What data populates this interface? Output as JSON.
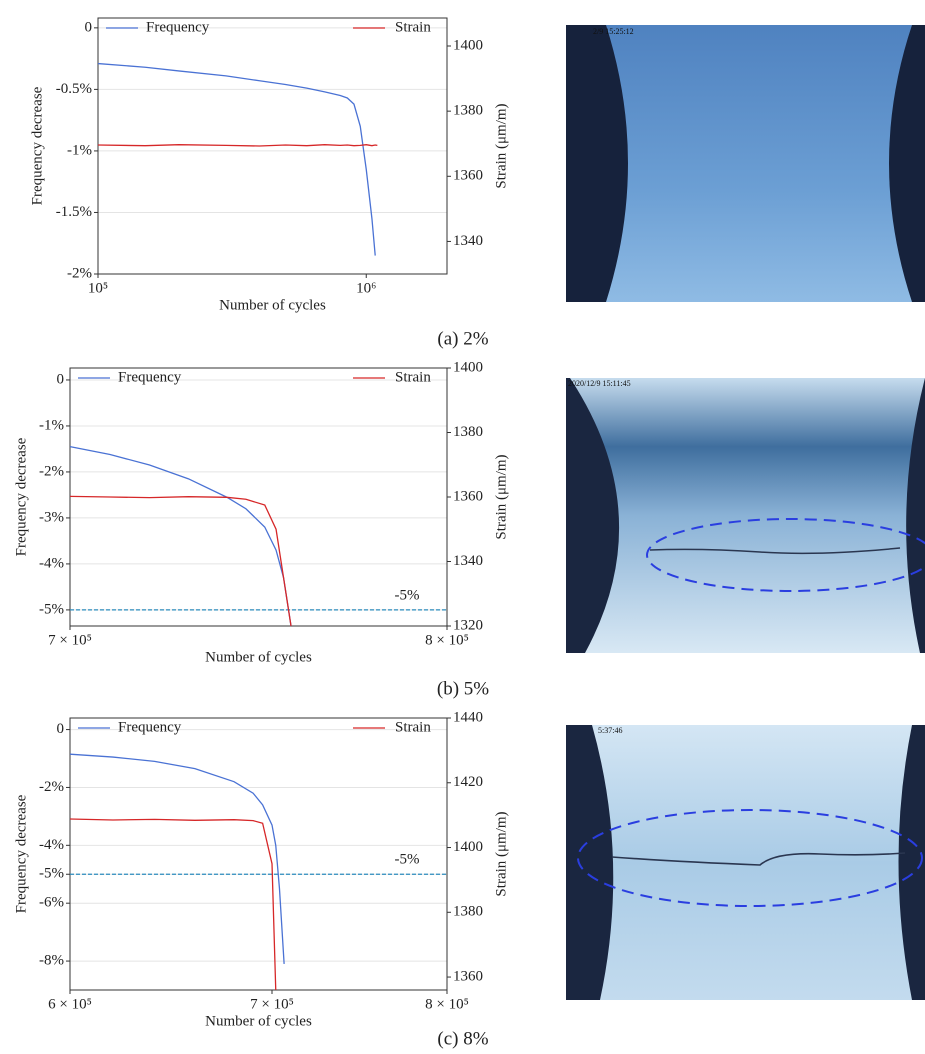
{
  "chart_data": [
    {
      "type": "line",
      "caption": "(a) 2%",
      "photo_timestamp": "2/9 15:25:12",
      "xlabel": "Number of cycles",
      "ylabel": "Frequency decrease",
      "y2label": "Strain (μm/m)",
      "xscale": "log",
      "grid": true,
      "xlim": [
        100000,
        2000000
      ],
      "xticks": [
        {
          "value": 100000,
          "label": "10⁵"
        },
        {
          "value": 1000000,
          "label": "10⁶"
        }
      ],
      "ylim": [
        -2,
        0.08
      ],
      "yticks": [
        0,
        {
          "value": -0.5,
          "label": "-0.5%"
        },
        {
          "value": -1,
          "label": "-1%"
        },
        {
          "value": -1.5,
          "label": "-1.5%"
        },
        {
          "value": -2,
          "label": "-2%"
        }
      ],
      "y2lim": [
        1330,
        1408.6
      ],
      "y2ticks": [
        1340,
        1360,
        1380,
        1400
      ],
      "x": [
        100000,
        150000,
        200000,
        300000,
        400000,
        500000,
        600000,
        700000,
        800000,
        850000,
        900000,
        950000,
        1000000,
        1050000,
        1080000,
        1100000
      ],
      "series": [
        {
          "name": "Frequency",
          "color": "#4a72d4",
          "values": [
            -0.29,
            -0.32,
            -0.35,
            -0.39,
            -0.43,
            -0.46,
            -0.49,
            -0.52,
            -0.55,
            -0.57,
            -0.62,
            -0.8,
            -1.15,
            -1.55,
            -1.85,
            null
          ]
        },
        {
          "name": "Strain",
          "color": "#d62728",
          "axis": "y2",
          "values": [
            1369.6,
            1369.4,
            1369.7,
            1369.5,
            1369.3,
            1369.6,
            1369.4,
            1369.7,
            1369.5,
            1369.6,
            1369.4,
            1369.5,
            1369.7,
            1369.4,
            1369.6,
            1369.5
          ]
        }
      ]
    },
    {
      "type": "line",
      "caption": "(b) 5%",
      "photo_timestamp": "2020/12/9 15:11:45",
      "xlabel": "Number of cycles",
      "ylabel": "Frequency decrease",
      "y2label": "Strain (μm/m)",
      "xscale": "log",
      "grid": true,
      "xlim": [
        700000,
        800000
      ],
      "xticks": [
        {
          "value": 700000,
          "label": "7 × 10⁵"
        },
        {
          "value": 800000,
          "label": "8 × 10⁵"
        }
      ],
      "ylim": [
        -5.35,
        0.26
      ],
      "yticks": [
        0,
        {
          "value": -1,
          "label": "-1%"
        },
        {
          "value": -2,
          "label": "-2%"
        },
        {
          "value": -3,
          "label": "-3%"
        },
        {
          "value": -4,
          "label": "-4%"
        },
        {
          "value": -5,
          "label": "-5%"
        }
      ],
      "y2lim": [
        1320,
        1400
      ],
      "y2ticks": [
        1320,
        1340,
        1360,
        1380,
        1400
      ],
      "hline": {
        "value": -5,
        "label": "-5%",
        "color": "#2b8cbe"
      },
      "x": [
        700000,
        710000,
        720000,
        730000,
        740000,
        745000,
        750000,
        753000,
        755000,
        757000
      ],
      "series": [
        {
          "name": "Frequency",
          "color": "#4a72d4",
          "values": [
            -1.45,
            -1.62,
            -1.85,
            -2.15,
            -2.55,
            -2.8,
            -3.2,
            -3.7,
            -4.3,
            -5.35
          ]
        },
        {
          "name": "Strain",
          "color": "#d62728",
          "axis": "y2",
          "values": [
            1360.2,
            1360.0,
            1359.8,
            1360.1,
            1359.9,
            1359.3,
            1357.5,
            1350,
            1335,
            1320
          ]
        }
      ]
    },
    {
      "type": "line",
      "caption": "(c) 8%",
      "photo_timestamp": "5:37:46",
      "xlabel": "Number of cycles",
      "ylabel": "Frequency decrease",
      "y2label": "Strain (μm/m)",
      "xscale": "log",
      "grid": true,
      "xlim": [
        600000,
        800000
      ],
      "xticks": [
        {
          "value": 600000,
          "label": "6 × 10⁵"
        },
        {
          "value": 700000,
          "label": "7 × 10⁵"
        },
        {
          "value": 800000,
          "label": "8 × 10⁵"
        }
      ],
      "ylim": [
        -9,
        0.4
      ],
      "yticks": [
        0,
        {
          "value": -2,
          "label": "-2%"
        },
        {
          "value": -4,
          "label": "-4%"
        },
        {
          "value": -5,
          "label": "-5%"
        },
        {
          "value": -6,
          "label": "-6%"
        },
        {
          "value": -8,
          "label": "-8%"
        }
      ],
      "y2lim": [
        1356,
        1440
      ],
      "y2ticks": [
        1360,
        1380,
        1400,
        1420,
        1440
      ],
      "hline": {
        "value": -5,
        "label": "-5%",
        "color": "#2b8cbe"
      },
      "x": [
        600000,
        620000,
        640000,
        660000,
        680000,
        690000,
        695000,
        700000,
        702000,
        704000,
        706500
      ],
      "series": [
        {
          "name": "Frequency",
          "color": "#4a72d4",
          "values": [
            -0.85,
            -0.95,
            -1.1,
            -1.35,
            -1.8,
            -2.2,
            -2.6,
            -3.3,
            -4.0,
            -5.5,
            -8.1
          ]
        },
        {
          "name": "Strain",
          "color": "#d62728",
          "axis": "y2",
          "values": [
            1408.8,
            1408.5,
            1408.7,
            1408.4,
            1408.6,
            1408.3,
            1407.5,
            1395,
            1356,
            null,
            null
          ]
        }
      ]
    }
  ]
}
